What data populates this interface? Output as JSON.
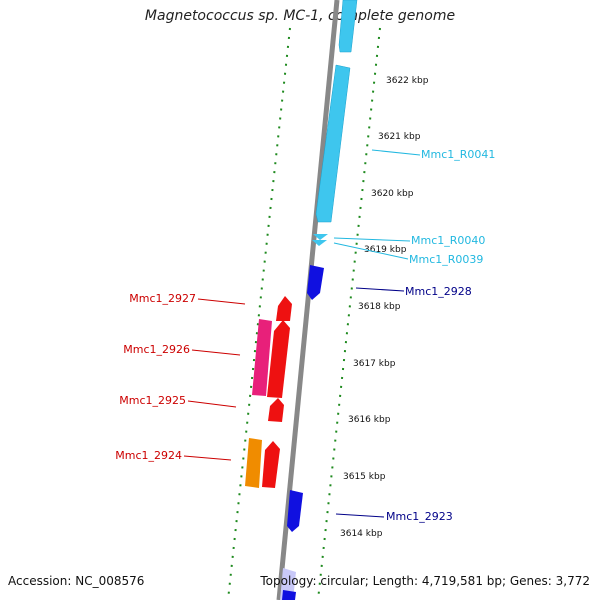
{
  "title": "Magnetococcus sp. MC-1, complete genome",
  "accession_text": "Accession: NC_008576",
  "topology_text": "Topology: circular; Length: 4,719,581 bp; Genes: 3,772",
  "colors": {
    "backbone": "#888888",
    "dots": "#1e8a1e",
    "rna": "#3ec6ee",
    "gene_fwd_blue": "#1010e0",
    "gene_red": "#ee1111",
    "gene_pink": "#e8207a",
    "gene_orange": "#f08c00",
    "label_rna": "#22b8e0",
    "label_blue": "#000088",
    "label_red": "#cc0000"
  },
  "ticks": [
    {
      "label": "3622 kbp"
    },
    {
      "label": "3621 kbp"
    },
    {
      "label": "3620 kbp"
    },
    {
      "label": "3619 kbp"
    },
    {
      "label": "3618 kbp"
    },
    {
      "label": "3617 kbp"
    },
    {
      "label": "3616 kbp"
    },
    {
      "label": "3615 kbp"
    },
    {
      "label": "3614 kbp"
    }
  ],
  "features": [
    {
      "name": "Mmc1_R0041",
      "kind": "rna"
    },
    {
      "name": "Mmc1_R0040",
      "kind": "rna"
    },
    {
      "name": "Mmc1_R0039",
      "kind": "rna"
    },
    {
      "name": "Mmc1_2928",
      "kind": "gene-blue"
    },
    {
      "name": "Mmc1_2927",
      "kind": "gene-red"
    },
    {
      "name": "Mmc1_2926",
      "kind": "gene-red"
    },
    {
      "name": "Mmc1_2925",
      "kind": "gene-red"
    },
    {
      "name": "Mmc1_2924",
      "kind": "gene-red"
    },
    {
      "name": "Mmc1_2923",
      "kind": "gene-blue"
    }
  ]
}
